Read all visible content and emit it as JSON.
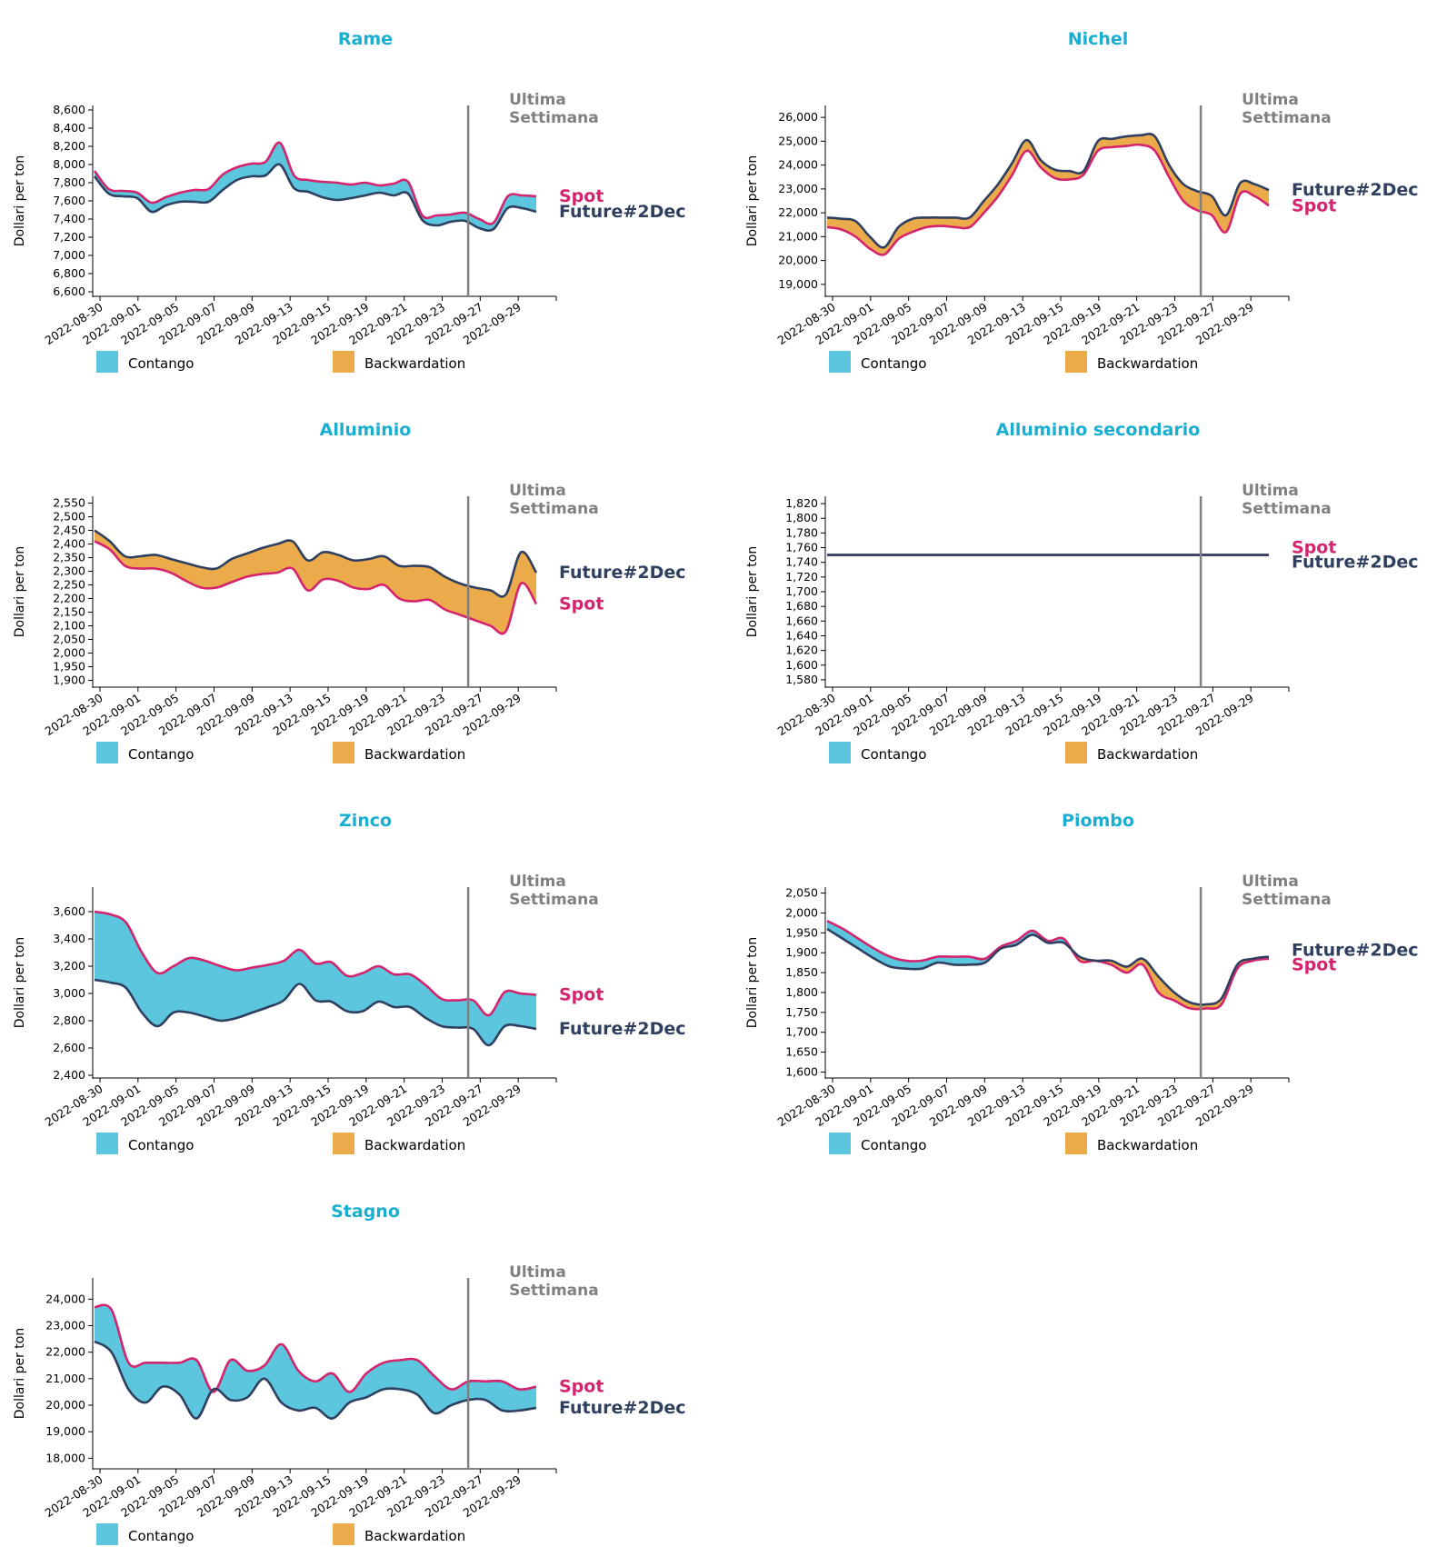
{
  "colors": {
    "title": "#1aaed0",
    "spot": "#d4246e",
    "future": "#2e3f60",
    "contango": "#5bc6dd",
    "backwardation": "#ecab4b",
    "week_line": "#808080",
    "week_label": "#808080",
    "axis": "#000000"
  },
  "ylabel": "Dollari per ton",
  "legend": {
    "contango": "Contango",
    "backwardation": "Backwardation"
  },
  "week_label": [
    "Ultima",
    "Settimana"
  ],
  "x_tick_labels": [
    "2022-08-30",
    "2022-09-01",
    "2022-09-05",
    "2022-09-07",
    "2022-09-09",
    "2022-09-13",
    "2022-09-15",
    "2022-09-19",
    "2022-09-21",
    "2022-09-23",
    "2022-09-27",
    "2022-09-29"
  ],
  "chart_data": [
    {
      "type": "area",
      "title": "Rame",
      "ylabel": "Dollari per ton",
      "ylim": [
        6550,
        8650
      ],
      "yticks": [
        6600,
        6800,
        7000,
        7200,
        7400,
        7600,
        7800,
        8000,
        8200,
        8400,
        8600
      ],
      "series": [
        {
          "name": "Spot",
          "values": [
            7930,
            7730,
            7710,
            7690,
            7580,
            7640,
            7690,
            7720,
            7730,
            7890,
            7970,
            8010,
            8030,
            8240,
            7880,
            7830,
            7810,
            7800,
            7780,
            7800,
            7770,
            7790,
            7810,
            7440,
            7440,
            7450,
            7470,
            7400,
            7360,
            7650,
            7660,
            7650
          ]
        },
        {
          "name": "Future#2Dec",
          "values": [
            7870,
            7680,
            7650,
            7630,
            7480,
            7550,
            7590,
            7590,
            7590,
            7720,
            7830,
            7870,
            7880,
            8000,
            7740,
            7700,
            7640,
            7610,
            7630,
            7660,
            7690,
            7660,
            7680,
            7390,
            7330,
            7370,
            7380,
            7300,
            7290,
            7520,
            7520,
            7480
          ]
        }
      ]
    },
    {
      "type": "area",
      "title": "Nichel",
      "ylabel": "Dollari per ton",
      "ylim": [
        18500,
        26500
      ],
      "yticks": [
        19000,
        20000,
        21000,
        22000,
        23000,
        24000,
        25000,
        26000
      ],
      "series": [
        {
          "name": "Spot",
          "values": [
            21400,
            21300,
            21000,
            20500,
            20250,
            20900,
            21200,
            21400,
            21450,
            21400,
            21400,
            22000,
            22700,
            23600,
            24600,
            23900,
            23450,
            23400,
            23600,
            24600,
            24750,
            24800,
            24850,
            24600,
            23500,
            22500,
            22100,
            21900,
            21200,
            22800,
            22700,
            22300
          ]
        },
        {
          "name": "Future#2Dec",
          "values": [
            21800,
            21750,
            21650,
            21000,
            20550,
            21400,
            21750,
            21800,
            21800,
            21800,
            21800,
            22500,
            23200,
            24100,
            25050,
            24200,
            23800,
            23750,
            23750,
            25000,
            25100,
            25200,
            25250,
            25200,
            24000,
            23200,
            22900,
            22700,
            21900,
            23250,
            23200,
            22950
          ]
        }
      ]
    },
    {
      "type": "area",
      "title": "Alluminio",
      "ylabel": "Dollari per ton",
      "ylim": [
        1875,
        2575
      ],
      "yticks": [
        1900,
        1950,
        2000,
        2050,
        2100,
        2150,
        2200,
        2250,
        2300,
        2350,
        2400,
        2450,
        2500,
        2550
      ],
      "series": [
        {
          "name": "Spot",
          "values": [
            2410,
            2380,
            2320,
            2310,
            2310,
            2295,
            2265,
            2240,
            2240,
            2260,
            2280,
            2290,
            2295,
            2310,
            2230,
            2270,
            2265,
            2240,
            2235,
            2250,
            2200,
            2190,
            2195,
            2160,
            2140,
            2120,
            2100,
            2080,
            2255,
            2180
          ]
        },
        {
          "name": "Future#2Dec",
          "values": [
            2450,
            2410,
            2355,
            2355,
            2360,
            2345,
            2330,
            2315,
            2310,
            2345,
            2365,
            2385,
            2400,
            2410,
            2340,
            2370,
            2360,
            2340,
            2345,
            2355,
            2320,
            2320,
            2315,
            2280,
            2255,
            2240,
            2230,
            2215,
            2370,
            2295
          ]
        }
      ]
    },
    {
      "type": "area",
      "title": "Alluminio secondario",
      "ylabel": "Dollari per ton",
      "ylim": [
        1570,
        1830
      ],
      "yticks": [
        1580,
        1600,
        1620,
        1640,
        1660,
        1680,
        1700,
        1720,
        1740,
        1760,
        1780,
        1800,
        1820
      ],
      "series": [
        {
          "name": "Spot",
          "values": [
            1750,
            1750,
            1750,
            1750,
            1750,
            1750,
            1750,
            1750,
            1750,
            1750,
            1750,
            1750,
            1750,
            1750,
            1750,
            1750,
            1750,
            1750,
            1750,
            1750,
            1750,
            1750,
            1750,
            1750,
            1750,
            1750,
            1750,
            1750,
            1750,
            1750,
            1750
          ]
        },
        {
          "name": "Future#2Dec",
          "values": [
            1750,
            1750,
            1750,
            1750,
            1750,
            1750,
            1750,
            1750,
            1750,
            1750,
            1750,
            1750,
            1750,
            1750,
            1750,
            1750,
            1750,
            1750,
            1750,
            1750,
            1750,
            1750,
            1750,
            1750,
            1750,
            1750,
            1750,
            1750,
            1750,
            1750,
            1750
          ]
        }
      ]
    },
    {
      "type": "area",
      "title": "Zinco",
      "ylabel": "Dollari per ton",
      "ylim": [
        2380,
        3780
      ],
      "yticks": [
        2400,
        2600,
        2800,
        3000,
        3200,
        3400,
        3600
      ],
      "series": [
        {
          "name": "Spot",
          "values": [
            3600,
            3580,
            3520,
            3300,
            3150,
            3200,
            3260,
            3240,
            3200,
            3170,
            3190,
            3210,
            3240,
            3320,
            3220,
            3230,
            3130,
            3150,
            3200,
            3140,
            3140,
            3060,
            2960,
            2950,
            2950,
            2840,
            3010,
            3000,
            2990
          ]
        },
        {
          "name": "Future#2Dec",
          "values": [
            3100,
            3080,
            3040,
            2860,
            2760,
            2860,
            2860,
            2830,
            2800,
            2820,
            2860,
            2900,
            2950,
            3070,
            2950,
            2940,
            2870,
            2870,
            2940,
            2900,
            2900,
            2820,
            2760,
            2750,
            2740,
            2620,
            2760,
            2760,
            2740
          ]
        }
      ]
    },
    {
      "type": "area",
      "title": "Piombo",
      "ylabel": "Dollari per ton",
      "ylim": [
        1585,
        2065
      ],
      "yticks": [
        1600,
        1650,
        1700,
        1750,
        1800,
        1850,
        1900,
        1950,
        2000,
        2050
      ],
      "series": [
        {
          "name": "Spot",
          "values": [
            1980,
            1960,
            1935,
            1910,
            1890,
            1880,
            1880,
            1890,
            1890,
            1890,
            1885,
            1915,
            1930,
            1955,
            1930,
            1935,
            1880,
            1880,
            1870,
            1850,
            1870,
            1800,
            1780,
            1760,
            1760,
            1770,
            1860,
            1880,
            1885
          ]
        },
        {
          "name": "Future#2Dec",
          "values": [
            1960,
            1935,
            1910,
            1885,
            1865,
            1860,
            1860,
            1875,
            1870,
            1870,
            1875,
            1910,
            1920,
            1945,
            1925,
            1925,
            1890,
            1880,
            1880,
            1865,
            1885,
            1840,
            1800,
            1775,
            1770,
            1785,
            1870,
            1885,
            1890
          ]
        }
      ]
    },
    {
      "type": "area",
      "title": "Stagno",
      "ylabel": "Dollari per ton",
      "ylim": [
        17600,
        24800
      ],
      "yticks": [
        18000,
        19000,
        20000,
        21000,
        22000,
        23000,
        24000
      ],
      "series": [
        {
          "name": "Spot",
          "values": [
            23700,
            23600,
            21600,
            21600,
            21600,
            21600,
            21700,
            20500,
            21700,
            21300,
            21500,
            22300,
            21300,
            20900,
            21200,
            20500,
            21200,
            21600,
            21700,
            21700,
            21100,
            20600,
            20900,
            20900,
            20900,
            20600,
            20700
          ]
        },
        {
          "name": "Future#2Dec",
          "values": [
            22400,
            22000,
            20600,
            20100,
            20700,
            20400,
            19500,
            20600,
            20200,
            20300,
            21000,
            20100,
            19800,
            19900,
            19500,
            20100,
            20300,
            20600,
            20600,
            20400,
            19700,
            20000,
            20200,
            20200,
            19800,
            19800,
            19900
          ]
        }
      ]
    }
  ]
}
